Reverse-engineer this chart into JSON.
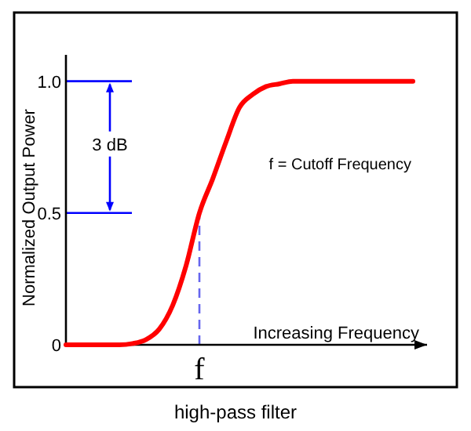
{
  "chart_data": {
    "type": "line",
    "xlabel": "Increasing Frequency",
    "ylabel": "Normalized Output Power",
    "categories": [
      null,
      null,
      null,
      null,
      null,
      null,
      null,
      null,
      null,
      null,
      "f",
      null,
      null,
      null,
      null,
      null,
      null,
      null,
      null,
      null,
      null,
      null,
      null,
      null,
      null,
      null,
      null
    ],
    "series": [
      {
        "color": "#ff0000",
        "values": [
          0,
          0,
          0,
          0,
          0,
          0.005,
          0.02,
          0.06,
          0.15,
          0.3,
          0.5,
          0.63,
          0.77,
          0.9,
          0.95,
          0.98,
          0.99,
          1,
          1,
          1,
          1,
          1,
          1,
          1,
          1,
          1,
          1
        ]
      }
    ],
    "ylim": [
      0,
      1.1
    ],
    "yticks": [
      0,
      0.5,
      {
        "value": 1,
        "label": "1.0"
      }
    ],
    "ref_lines": [
      {
        "axis": "y",
        "value": 0.5,
        "color": "#0000ff"
      },
      {
        "axis": "y",
        "value": 1,
        "color": "#0000ff"
      },
      {
        "axis": "x",
        "value": "f",
        "color": "#6666ee",
        "line_style": "dashed"
      }
    ],
    "annotations": [
      "3 dB",
      "f = Cutoff Frequency",
      "high-pass filter"
    ],
    "grid": false,
    "marker": "none",
    "line_style": "solid"
  }
}
